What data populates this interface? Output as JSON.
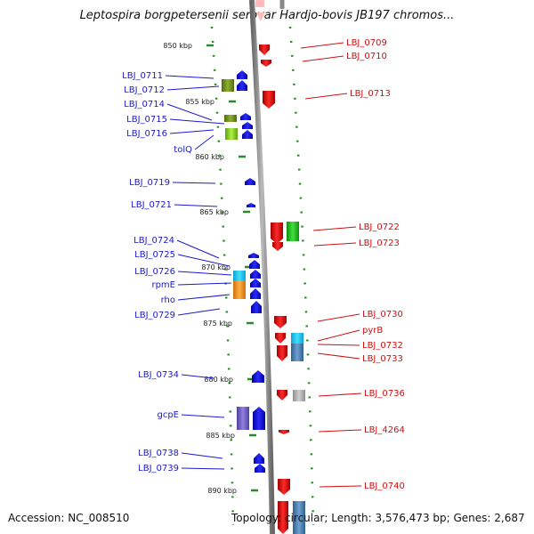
{
  "title": "Leptospira borgpetersenii serovar Hardjo-bovis JB197 chromos...",
  "accession_text": "Accession: NC_008510",
  "topology_text": "Topology: circular; Length: 3,576,473 bp; Genes: 2,687",
  "colors": {
    "left_label": "#1a1ad0",
    "right_label": "#d01010",
    "backbone": "#888888",
    "ticks": "#2a8a2a",
    "forward_gene": "#1010e0",
    "reverse_gene": "#e01010"
  },
  "ticks": [
    {
      "label": "850 kbp",
      "kbp": 850
    },
    {
      "label": "855 kbp",
      "kbp": 855
    },
    {
      "label": "860 kbp",
      "kbp": 860
    },
    {
      "label": "865 kbp",
      "kbp": 865
    },
    {
      "label": "870 kbp",
      "kbp": 870
    },
    {
      "label": "875 kbp",
      "kbp": 875
    },
    {
      "label": "880 kbp",
      "kbp": 880
    },
    {
      "label": "885 kbp",
      "kbp": 885
    },
    {
      "label": "890 kbp",
      "kbp": 890
    }
  ],
  "left_labels": [
    "LBJ_0711",
    "LBJ_0712",
    "LBJ_0714",
    "LBJ_0715",
    "LBJ_0716",
    "tolQ",
    "LBJ_0719",
    "LBJ_0721",
    "LBJ_0724",
    "LBJ_0725",
    "LBJ_0726",
    "rpmE",
    "rho",
    "LBJ_0729",
    "LBJ_0734",
    "gcpE",
    "LBJ_0738",
    "LBJ_0739"
  ],
  "right_labels": [
    "LBJ_0709",
    "LBJ_0710",
    "LBJ_0713",
    "LBJ_0722",
    "LBJ_0723",
    "LBJ_0730",
    "pyrB",
    "LBJ_0732",
    "LBJ_0733",
    "LBJ_0736",
    "LBJ_4264",
    "LBJ_0740"
  ]
}
